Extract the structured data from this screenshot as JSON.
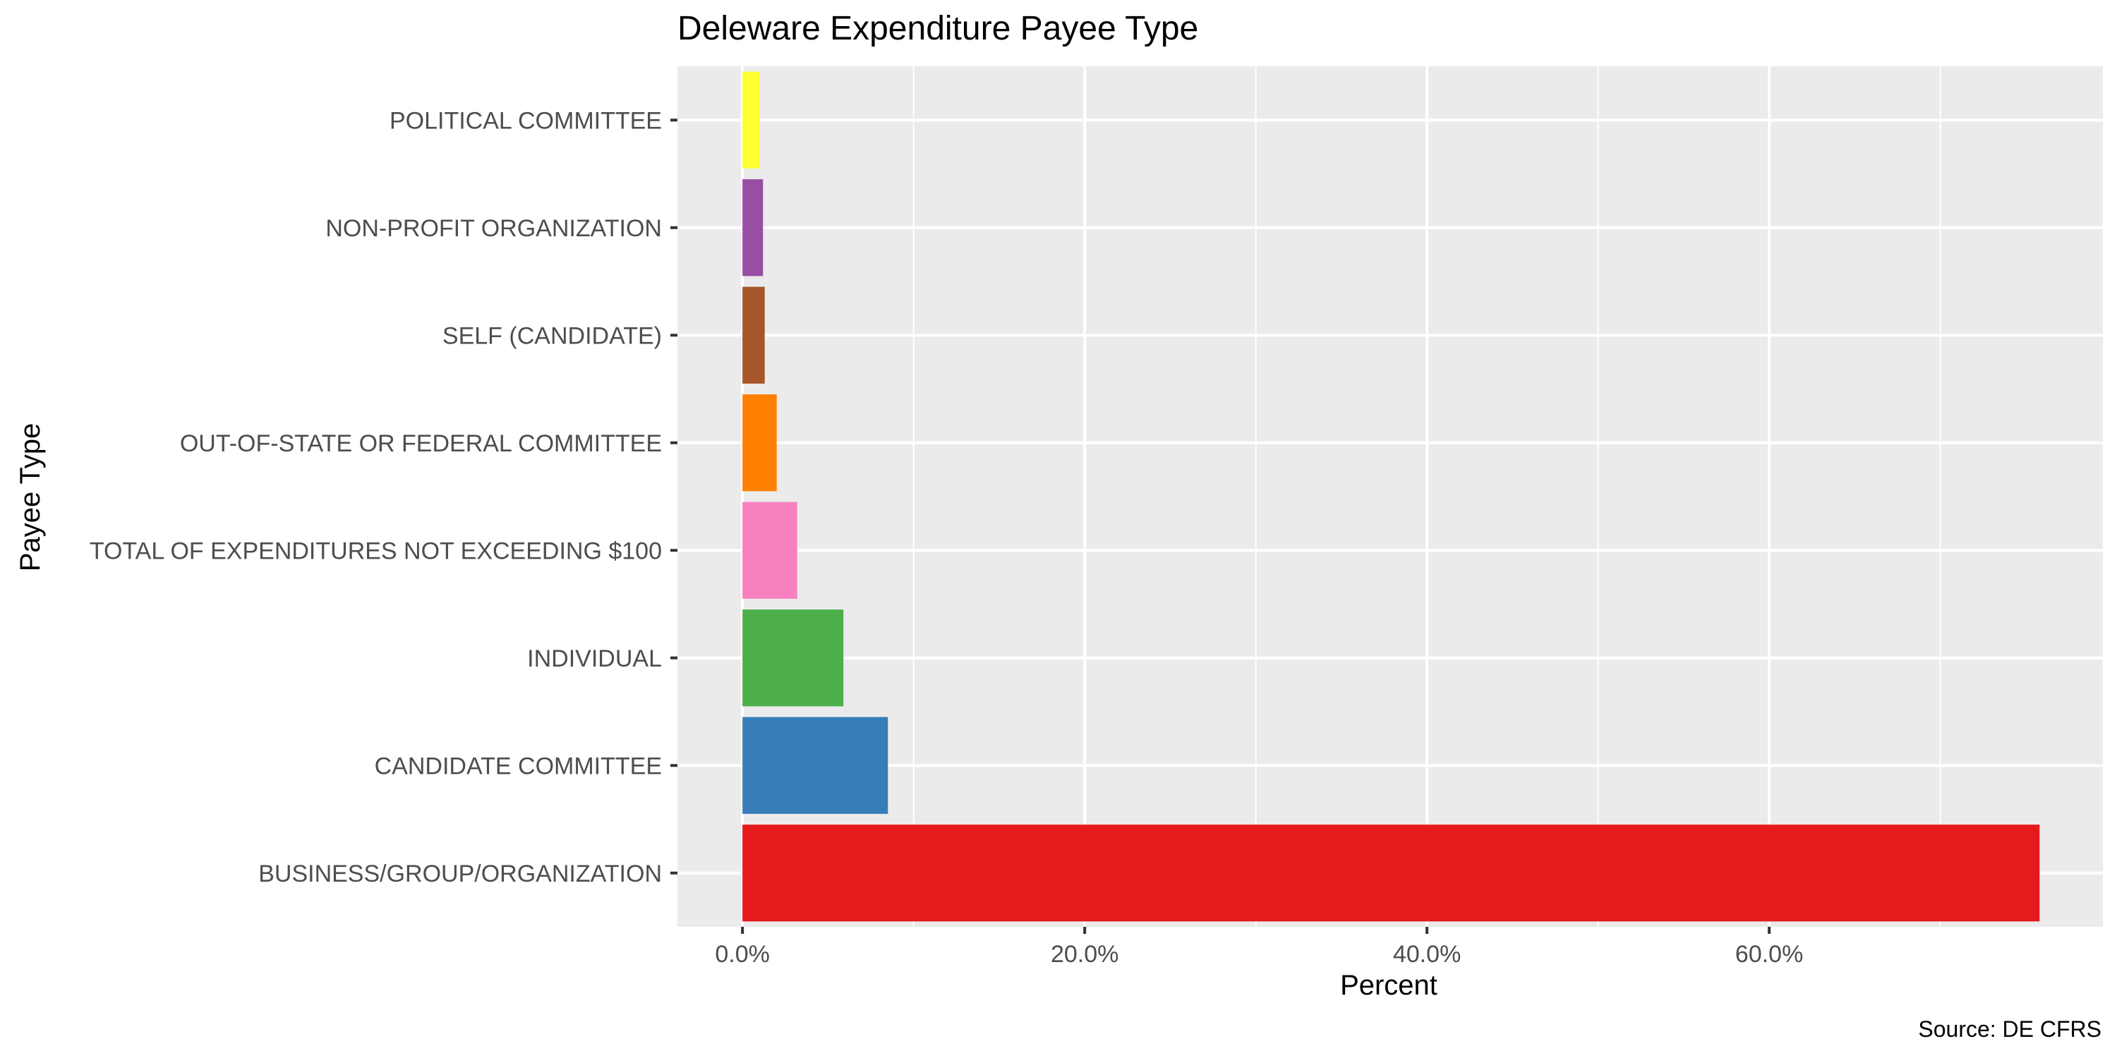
{
  "chart_data": {
    "type": "bar",
    "orientation": "horizontal",
    "title": "Deleware Expenditure Payee Type",
    "xlabel": "Percent",
    "ylabel": "Payee Type",
    "caption": "Source: DE CFRS",
    "xlim": [
      -0.038,
      0.795
    ],
    "x_ticks": [
      0,
      0.2,
      0.4,
      0.6
    ],
    "x_tick_labels": [
      "0.0%",
      "20.0%",
      "40.0%",
      "60.0%"
    ],
    "grid": true,
    "legend": "none",
    "categories": [
      "BUSINESS/GROUP/ORGANIZATION",
      "CANDIDATE COMMITTEE",
      "INDIVIDUAL",
      "TOTAL OF EXPENDITURES NOT EXCEEDING $100",
      "OUT-OF-STATE OR FEDERAL COMMITTEE",
      "SELF (CANDIDATE)",
      "NON-PROFIT ORGANIZATION",
      "POLITICAL COMMITTEE"
    ],
    "values": [
      0.758,
      0.085,
      0.059,
      0.032,
      0.02,
      0.013,
      0.012,
      0.01
    ],
    "colors": [
      "#e41a1c",
      "#377eb8",
      "#4daf4a",
      "#f781bf",
      "#ff7f00",
      "#a65628",
      "#984ea3",
      "#ffff33"
    ],
    "panel_background": "#ebebeb",
    "grid_color": "#ffffff"
  }
}
